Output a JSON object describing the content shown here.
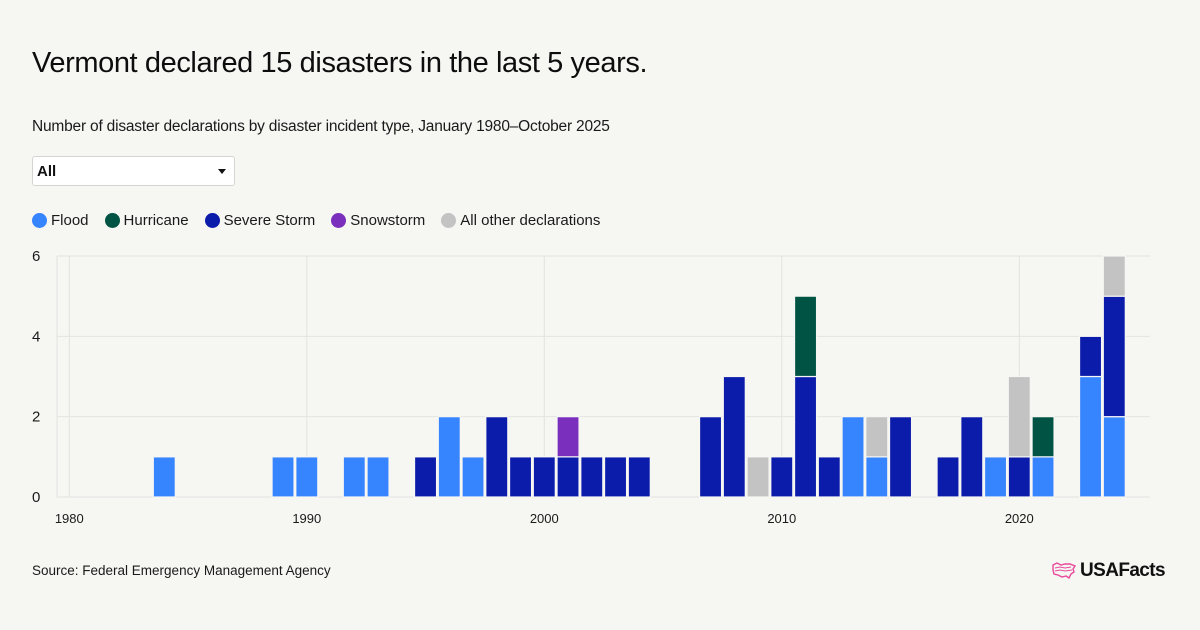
{
  "header": {
    "title": "Vermont declared 15 disasters in the last 5 years.",
    "subtitle": "Number of disaster declarations by disaster incident type, January 1980–October 2025"
  },
  "filter": {
    "selected": "All"
  },
  "footer": {
    "source": "Source: Federal Emergency Management Agency",
    "logo_text": "USAFacts",
    "logo_color": "#e8499a"
  },
  "chart_data": {
    "type": "bar",
    "stacked": true,
    "title": "Vermont declared 15 disasters in the last 5 years.",
    "subtitle": "Number of disaster declarations by disaster incident type, January 1980–October 2025",
    "xlabel": "",
    "ylabel": "",
    "xlim": [
      1980,
      2025
    ],
    "ylim": [
      0,
      6
    ],
    "x_ticks": [
      1980,
      1990,
      2000,
      2010,
      2020
    ],
    "y_ticks": [
      0,
      2,
      4,
      6
    ],
    "grid": true,
    "legend_position": "top-left",
    "categories": [
      1984,
      1989,
      1990,
      1992,
      1993,
      1995,
      1996,
      1997,
      1998,
      1999,
      2000,
      2001,
      2002,
      2003,
      2004,
      2007,
      2008,
      2009,
      2010,
      2011,
      2012,
      2013,
      2014,
      2015,
      2017,
      2018,
      2019,
      2020,
      2021,
      2023,
      2024
    ],
    "series": [
      {
        "name": "Flood",
        "color": "#3784ff",
        "values": [
          1,
          1,
          1,
          1,
          1,
          0,
          2,
          1,
          0,
          0,
          0,
          0,
          0,
          0,
          0,
          0,
          0,
          0,
          0,
          0,
          0,
          2,
          1,
          0,
          0,
          0,
          1,
          0,
          1,
          3,
          2
        ]
      },
      {
        "name": "Severe Storm",
        "color": "#0b1caa",
        "values": [
          0,
          0,
          0,
          0,
          0,
          1,
          0,
          0,
          2,
          1,
          1,
          1,
          1,
          1,
          1,
          2,
          3,
          0,
          1,
          3,
          1,
          0,
          0,
          2,
          1,
          2,
          0,
          1,
          0,
          1,
          3
        ]
      },
      {
        "name": "Hurricane",
        "color": "#015444",
        "values": [
          0,
          0,
          0,
          0,
          0,
          0,
          0,
          0,
          0,
          0,
          0,
          0,
          0,
          0,
          0,
          0,
          0,
          0,
          0,
          2,
          0,
          0,
          0,
          0,
          0,
          0,
          0,
          0,
          1,
          0,
          0
        ]
      },
      {
        "name": "Snowstorm",
        "color": "#7b2fbd",
        "values": [
          0,
          0,
          0,
          0,
          0,
          0,
          0,
          0,
          0,
          0,
          0,
          1,
          0,
          0,
          0,
          0,
          0,
          0,
          0,
          0,
          0,
          0,
          0,
          0,
          0,
          0,
          0,
          0,
          0,
          0,
          0
        ]
      },
      {
        "name": "All other declarations",
        "color": "#c2c3c2",
        "values": [
          0,
          0,
          0,
          0,
          0,
          0,
          0,
          0,
          0,
          0,
          0,
          0,
          0,
          0,
          0,
          0,
          0,
          1,
          0,
          0,
          0,
          0,
          1,
          0,
          0,
          0,
          0,
          2,
          0,
          0,
          1
        ]
      }
    ],
    "legend": [
      {
        "name": "Flood",
        "color": "#3784ff"
      },
      {
        "name": "Hurricane",
        "color": "#015444"
      },
      {
        "name": "Severe Storm",
        "color": "#0b1caa"
      },
      {
        "name": "Snowstorm",
        "color": "#7b2fbd"
      },
      {
        "name": "All other declarations",
        "color": "#c2c3c2"
      }
    ]
  }
}
